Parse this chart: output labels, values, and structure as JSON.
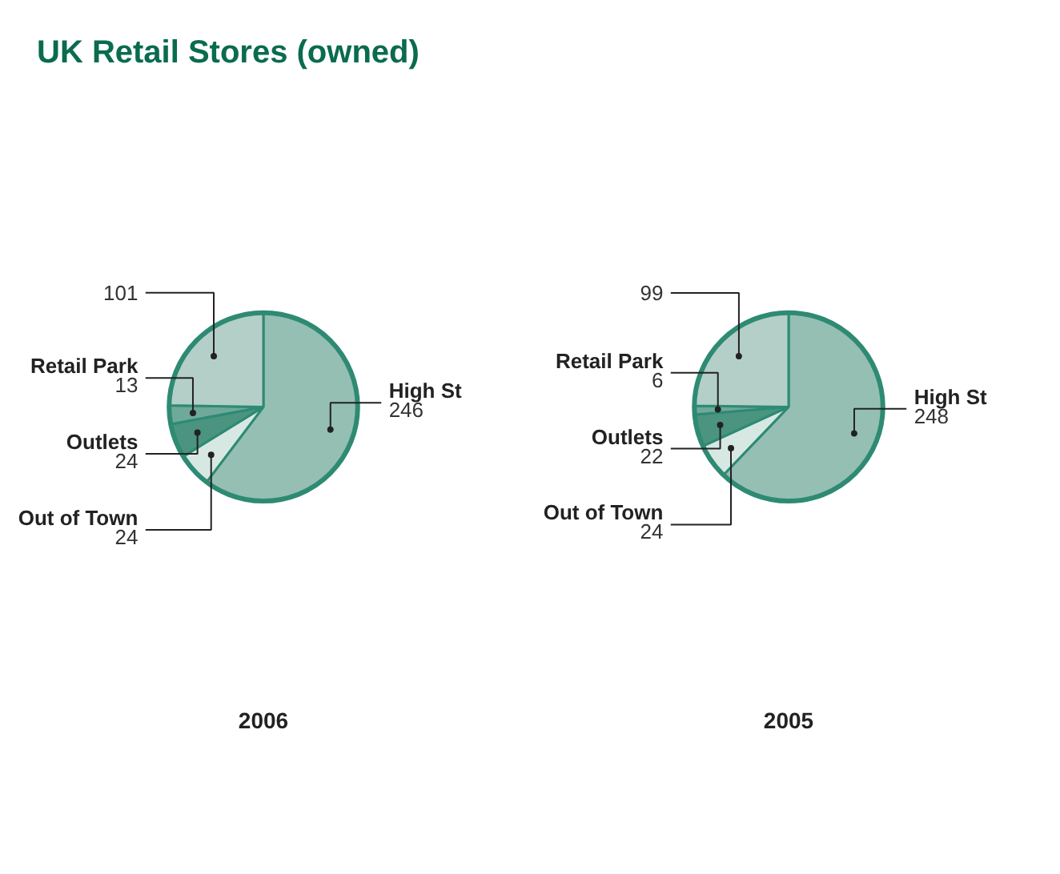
{
  "chart_data": [
    {
      "type": "pie",
      "title": "UK Retail Stores (owned)",
      "xlabel": "2006",
      "categories": [
        "High St",
        "Out of Town",
        "Outlets",
        "Retail Park",
        null
      ],
      "values": [
        246,
        24,
        24,
        13,
        101
      ],
      "colors": [
        "#95bfb3",
        "#d7e8e3",
        "#4a9480",
        "#6ea99a",
        "#b3cfc8"
      ],
      "data_labels": true
    },
    {
      "type": "pie",
      "xlabel": "2005",
      "categories": [
        "High St",
        "Out of Town",
        "Outlets",
        "Retail Park",
        null
      ],
      "values": [
        248,
        24,
        22,
        6,
        99
      ],
      "colors": [
        "#95bfb3",
        "#d7e8e3",
        "#4a9480",
        "#6ea99a",
        "#b3cfc8"
      ],
      "data_labels": true
    }
  ]
}
